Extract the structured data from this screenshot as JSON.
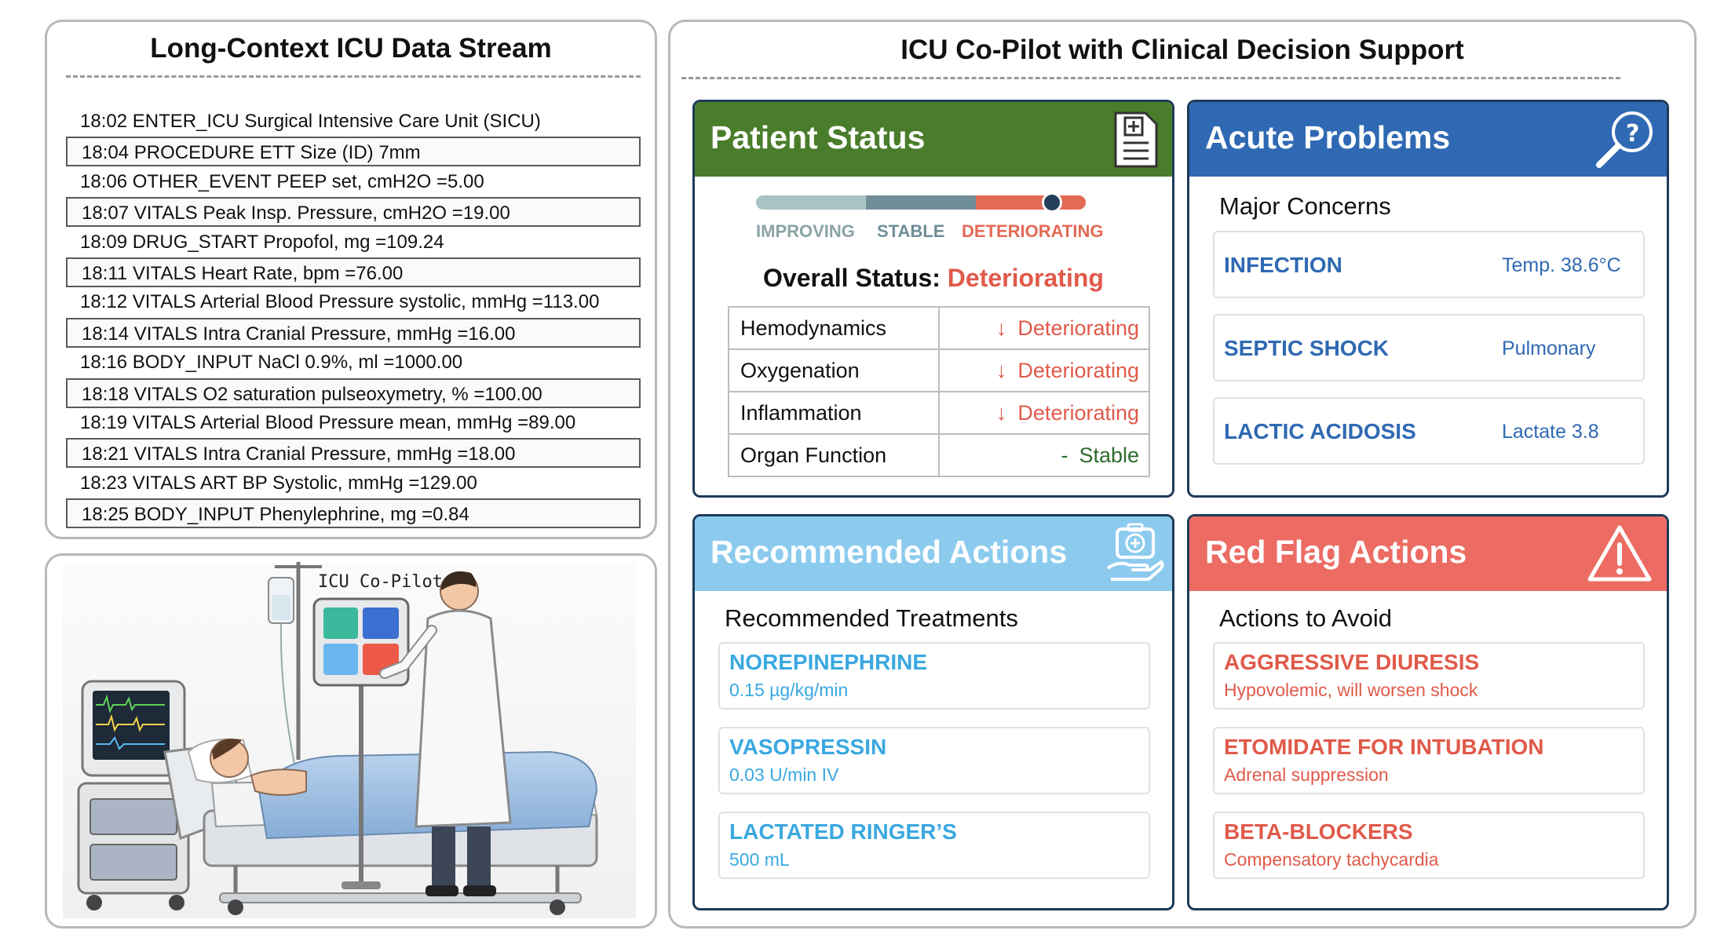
{
  "colors": {
    "green": "#4a7d2b",
    "blue": "#2f69b3",
    "lightblue": "#8ccbee",
    "red": "#ec6c63",
    "accent_blue": "#2f69b3",
    "sky": "#3aa8e0",
    "redtext": "#e05a4a"
  },
  "left": {
    "title": "Long-Context ICU Data Stream",
    "stream": [
      {
        "text": "18:02 ENTER_ICU Surgical Intensive Care Unit (SICU)",
        "boxed": false
      },
      {
        "text": "18:04 PROCEDURE ETT Size (ID) 7mm",
        "boxed": true
      },
      {
        "text": "18:06 OTHER_EVENT PEEP set, cmH2O =5.00",
        "boxed": false
      },
      {
        "text": "18:07 VITALS Peak Insp. Pressure, cmH2O =19.00",
        "boxed": true
      },
      {
        "text": "18:09 DRUG_START Propofol, mg =109.24",
        "boxed": false
      },
      {
        "text": "18:11 VITALS Heart Rate, bpm =76.00",
        "boxed": true
      },
      {
        "text": "18:12 VITALS Arterial Blood Pressure systolic, mmHg =113.00",
        "boxed": false
      },
      {
        "text": "18:14 VITALS Intra Cranial Pressure, mmHg =16.00",
        "boxed": true
      },
      {
        "text": "18:16 BODY_INPUT NaCl 0.9%, ml =1000.00",
        "boxed": false
      },
      {
        "text": "18:18 VITALS O2 saturation pulseoxymetry, % =100.00",
        "boxed": true
      },
      {
        "text": "18:19 VITALS Arterial Blood Pressure mean, mmHg =89.00",
        "boxed": false
      },
      {
        "text": "18:21 VITALS Intra Cranial Pressure, mmHg =18.00",
        "boxed": true
      },
      {
        "text": "18:23 VITALS ART BP Systolic, mmHg =129.00",
        "boxed": false
      },
      {
        "text": "18:25 BODY_INPUT Phenylephrine, mg =0.84",
        "boxed": true
      }
    ],
    "illustration": {
      "tablet_label": "ICU Co-Pilot"
    }
  },
  "right": {
    "title": "ICU Co-Pilot with Clinical Decision Support",
    "patient_status": {
      "title": "Patient Status",
      "icon": "clipboard-plus-icon",
      "scale_labels": [
        "IMPROVING",
        "STABLE",
        "DETERIORATING"
      ],
      "overall_label": "Overall Status:",
      "overall_value": "Deteriorating",
      "rows": [
        {
          "name": "Hemodynamics",
          "arrow": "↓",
          "trend": "Deteriorating",
          "kind": "det"
        },
        {
          "name": "Oxygenation",
          "arrow": "↓",
          "trend": "Deteriorating",
          "kind": "det"
        },
        {
          "name": "Inflammation",
          "arrow": "↓",
          "trend": "Deteriorating",
          "kind": "det"
        },
        {
          "name": "Organ Function",
          "arrow": "-",
          "trend": "Stable",
          "kind": "stab"
        }
      ]
    },
    "acute_problems": {
      "title": "Acute Problems",
      "icon": "magnifier-question-icon",
      "subtitle": "Major Concerns",
      "items": [
        {
          "name": "INFECTION",
          "detail": "Temp. 38.6°C"
        },
        {
          "name": "SEPTIC SHOCK",
          "detail": "Pulmonary"
        },
        {
          "name": "LACTIC ACIDOSIS",
          "detail": "Lactate 3.8"
        }
      ]
    },
    "recommended": {
      "title": "Recommended Actions",
      "icon": "medkit-hand-icon",
      "subtitle": "Recommended Treatments",
      "items": [
        {
          "name": "NOREPINEPHRINE",
          "detail": "0.15 µg/kg/min"
        },
        {
          "name": "VASOPRESSIN",
          "detail": "0.03 U/min IV"
        },
        {
          "name": "LACTATED RINGER’S",
          "detail": "500 mL"
        }
      ]
    },
    "red_flag": {
      "title": "Red Flag Actions",
      "icon": "warning-triangle-icon",
      "subtitle": "Actions to Avoid",
      "items": [
        {
          "name": "AGGRESSIVE DIURESIS",
          "detail": "Hypovolemic, will worsen shock"
        },
        {
          "name": "ETOMIDATE FOR INTUBATION",
          "detail": "Adrenal suppression"
        },
        {
          "name": "BETA-BLOCKERS",
          "detail": "Compensatory tachycardia"
        }
      ]
    }
  }
}
